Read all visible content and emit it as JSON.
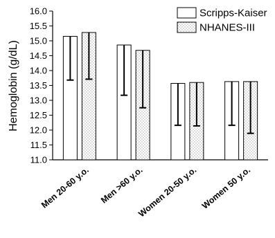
{
  "chart_data": {
    "type": "bar",
    "ylabel": "Hemoglobin (g/dL)",
    "xlabel": "",
    "ylim": [
      11.0,
      16.0
    ],
    "yticks": [
      "11.0",
      "11.5",
      "12.0",
      "12.5",
      "13.0",
      "13.5",
      "14.0",
      "14.5",
      "15.0",
      "15.5",
      "16.0"
    ],
    "categories": [
      "Men 20-60 y.o.",
      "Men >60 y.o.",
      "Women 20-50 y.o.",
      "Women 50 y.o."
    ],
    "legend_position": "top-right",
    "series": [
      {
        "name": "Scripps-Kaiser",
        "pattern": "solid",
        "values": [
          15.15,
          14.86,
          13.57,
          13.63
        ],
        "error_low": [
          13.68,
          13.17,
          12.16,
          12.16
        ]
      },
      {
        "name": "NHANES-III",
        "pattern": "dotted",
        "values": [
          15.28,
          14.68,
          13.6,
          13.63
        ],
        "error_low": [
          13.71,
          12.75,
          12.14,
          11.89
        ]
      }
    ]
  }
}
